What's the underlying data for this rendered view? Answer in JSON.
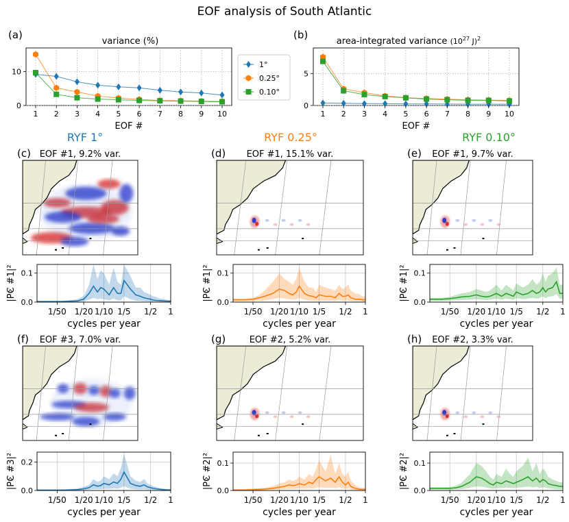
{
  "figure": {
    "title": "EOF analysis of South Atlantic",
    "column_titles": [
      {
        "text": "RYF 1°",
        "color": "#1f77b4"
      },
      {
        "text": "RYF 0.25°",
        "color": "#ff7f0e"
      },
      {
        "text": "RYF 0.10°",
        "color": "#2ca02c"
      }
    ]
  },
  "colors": {
    "c1": "#1f77b4",
    "c025": "#ff7f0e",
    "c010": "#2ca02c",
    "land": "#ecebd6",
    "pos": "#d62020",
    "neg": "#2030c8"
  },
  "chart_data": [
    {
      "id": "a",
      "type": "line",
      "panel_label": "(a)",
      "title": "variance (%)",
      "xlabel": "EOF #",
      "ylabel": "",
      "x": [
        1,
        2,
        3,
        4,
        5,
        6,
        7,
        8,
        9,
        10
      ],
      "ylim": [
        0,
        17
      ],
      "yticks": [
        0,
        10
      ],
      "series": [
        {
          "name": "1°",
          "marker": "diamond",
          "values": [
            9.2,
            8.6,
            7.0,
            6.0,
            5.5,
            5.2,
            4.5,
            4.0,
            3.7,
            3.1
          ]
        },
        {
          "name": "0.25°",
          "marker": "hexagon",
          "values": [
            15.1,
            5.2,
            4.0,
            2.8,
            2.2,
            1.8,
            1.5,
            1.4,
            1.3,
            1.2
          ]
        },
        {
          "name": "0.10°",
          "marker": "square",
          "values": [
            9.7,
            3.3,
            2.3,
            1.9,
            1.7,
            1.5,
            1.4,
            1.3,
            1.2,
            1.1
          ]
        }
      ],
      "legend": [
        "1°",
        "0.25°",
        "0.10°"
      ]
    },
    {
      "id": "b",
      "type": "line",
      "panel_label": "(b)",
      "title": "area-integrated variance",
      "title_units": "(10",
      "title_exp": "27",
      "title_units_end": " J)",
      "title_units_exp2": "2",
      "xlabel": "EOF #",
      "ylabel": "",
      "x": [
        1,
        2,
        3,
        4,
        5,
        6,
        7,
        8,
        9,
        10
      ],
      "ylim": [
        0,
        9
      ],
      "yticks": [
        0,
        5
      ],
      "series": [
        {
          "name": "1°",
          "marker": "diamond",
          "values": [
            0.4,
            0.35,
            0.3,
            0.3,
            0.25,
            0.25,
            0.22,
            0.2,
            0.2,
            0.2
          ]
        },
        {
          "name": "0.25°",
          "marker": "hexagon",
          "values": [
            7.6,
            2.6,
            2.0,
            1.5,
            1.2,
            1.1,
            1.0,
            0.9,
            0.85,
            0.8
          ]
        },
        {
          "name": "0.10°",
          "marker": "square",
          "values": [
            6.9,
            2.3,
            1.7,
            1.4,
            1.2,
            1.0,
            0.9,
            0.8,
            0.8,
            0.7
          ]
        }
      ]
    },
    {
      "id": "c-sp",
      "type": "area",
      "panel_label": "",
      "color": "#1f77b4",
      "ylabel": "|PC #1|²",
      "xlabel": "cycles per year",
      "xscale": "log",
      "xlim": [
        0.01,
        1
      ],
      "ylim": [
        0,
        0.13
      ],
      "yticks": [
        0.0,
        0.1
      ],
      "yticklabels": [
        "0.0",
        "0.1"
      ],
      "xticklabels": [
        "1/50",
        "1/20",
        "1/10",
        "1/5",
        "1/2",
        "1"
      ],
      "x": [
        0.01,
        0.015,
        0.02,
        0.025,
        0.03,
        0.04,
        0.05,
        0.06,
        0.07,
        0.08,
        0.09,
        0.1,
        0.12,
        0.14,
        0.16,
        0.18,
        0.2,
        0.25,
        0.3,
        0.35,
        0.4,
        0.45,
        0.5,
        0.55,
        0.6,
        0.7,
        0.8,
        0.9,
        1.0
      ],
      "y": [
        0.002,
        0.002,
        0.002,
        0.002,
        0.003,
        0.004,
        0.01,
        0.03,
        0.055,
        0.035,
        0.05,
        0.045,
        0.025,
        0.05,
        0.03,
        0.03,
        0.075,
        0.045,
        0.025,
        0.02,
        0.015,
        0.012,
        0.01,
        0.007,
        0.006,
        0.005,
        0.004,
        0.003,
        0.003
      ],
      "yhi": [
        0.004,
        0.004,
        0.004,
        0.005,
        0.006,
        0.01,
        0.02,
        0.06,
        0.13,
        0.08,
        0.11,
        0.1,
        0.06,
        0.12,
        0.07,
        0.06,
        0.13,
        0.09,
        0.05,
        0.05,
        0.035,
        0.03,
        0.025,
        0.02,
        0.018,
        0.012,
        0.01,
        0.008,
        0.007
      ],
      "ylo": [
        0.001,
        0.001,
        0.001,
        0.001,
        0.001,
        0.001,
        0.003,
        0.008,
        0.015,
        0.01,
        0.012,
        0.01,
        0.006,
        0.012,
        0.006,
        0.006,
        0.02,
        0.01,
        0.005,
        0.004,
        0.003,
        0.002,
        0.002,
        0.001,
        0.001,
        0.001,
        0.001,
        0.001,
        0.001
      ]
    },
    {
      "id": "d-sp",
      "type": "area",
      "panel_label": "",
      "color": "#ff7f0e",
      "ylabel": "|PC #1|²",
      "xlabel": "cycles per year",
      "xscale": "log",
      "xlim": [
        0.01,
        1
      ],
      "ylim": [
        0,
        0.13
      ],
      "yticks": [
        0.0,
        0.1
      ],
      "yticklabels": [
        "0.0",
        "0.1"
      ],
      "xticklabels": [
        "1/50",
        "1/20",
        "1/10",
        "1/5",
        "1/2",
        "1"
      ],
      "x": [
        0.01,
        0.015,
        0.02,
        0.025,
        0.03,
        0.04,
        0.05,
        0.06,
        0.07,
        0.08,
        0.09,
        0.1,
        0.12,
        0.14,
        0.16,
        0.18,
        0.2,
        0.25,
        0.3,
        0.35,
        0.4,
        0.45,
        0.5,
        0.55,
        0.6,
        0.7,
        0.8,
        0.9,
        1.0
      ],
      "y": [
        0.008,
        0.008,
        0.01,
        0.015,
        0.02,
        0.03,
        0.045,
        0.04,
        0.03,
        0.025,
        0.035,
        0.055,
        0.03,
        0.022,
        0.02,
        0.015,
        0.025,
        0.02,
        0.02,
        0.015,
        0.03,
        0.02,
        0.02,
        0.025,
        0.015,
        0.01,
        0.01,
        0.008,
        0.008
      ],
      "yhi": [
        0.012,
        0.012,
        0.015,
        0.025,
        0.04,
        0.07,
        0.1,
        0.08,
        0.07,
        0.06,
        0.08,
        0.12,
        0.07,
        0.05,
        0.05,
        0.035,
        0.06,
        0.05,
        0.045,
        0.04,
        0.06,
        0.045,
        0.05,
        0.06,
        0.04,
        0.03,
        0.028,
        0.02,
        0.02
      ],
      "ylo": [
        0.003,
        0.003,
        0.004,
        0.005,
        0.006,
        0.01,
        0.015,
        0.012,
        0.01,
        0.008,
        0.01,
        0.015,
        0.008,
        0.006,
        0.005,
        0.004,
        0.006,
        0.005,
        0.005,
        0.004,
        0.007,
        0.005,
        0.005,
        0.006,
        0.004,
        0.003,
        0.003,
        0.002,
        0.002
      ]
    },
    {
      "id": "e-sp",
      "type": "area",
      "panel_label": "",
      "color": "#2ca02c",
      "ylabel": "|PC #1|²",
      "xlabel": "cycles per year",
      "xscale": "log",
      "xlim": [
        0.01,
        1
      ],
      "ylim": [
        0,
        0.13
      ],
      "yticks": [
        0.0,
        0.1
      ],
      "yticklabels": [
        "0.0",
        "0.1"
      ],
      "xticklabels": [
        "1/50",
        "1/20",
        "1/10",
        "1/5",
        "1/2",
        "1"
      ],
      "x": [
        0.01,
        0.015,
        0.02,
        0.025,
        0.03,
        0.04,
        0.05,
        0.06,
        0.07,
        0.08,
        0.09,
        0.1,
        0.12,
        0.14,
        0.16,
        0.18,
        0.2,
        0.25,
        0.3,
        0.35,
        0.4,
        0.45,
        0.5,
        0.55,
        0.6,
        0.7,
        0.8,
        0.9,
        1.0
      ],
      "y": [
        0.01,
        0.01,
        0.012,
        0.015,
        0.018,
        0.02,
        0.025,
        0.02,
        0.018,
        0.02,
        0.025,
        0.03,
        0.02,
        0.03,
        0.025,
        0.02,
        0.035,
        0.025,
        0.03,
        0.04,
        0.03,
        0.035,
        0.05,
        0.035,
        0.045,
        0.05,
        0.07,
        0.03,
        0.03
      ],
      "yhi": [
        0.015,
        0.015,
        0.018,
        0.025,
        0.03,
        0.035,
        0.045,
        0.04,
        0.035,
        0.04,
        0.05,
        0.06,
        0.04,
        0.06,
        0.05,
        0.04,
        0.065,
        0.05,
        0.06,
        0.08,
        0.06,
        0.07,
        0.1,
        0.07,
        0.09,
        0.1,
        0.12,
        0.06,
        0.06
      ],
      "ylo": [
        0.004,
        0.004,
        0.005,
        0.006,
        0.007,
        0.008,
        0.01,
        0.008,
        0.007,
        0.008,
        0.01,
        0.012,
        0.008,
        0.012,
        0.01,
        0.008,
        0.014,
        0.01,
        0.012,
        0.015,
        0.012,
        0.014,
        0.02,
        0.014,
        0.018,
        0.02,
        0.028,
        0.012,
        0.012
      ]
    },
    {
      "id": "f-sp",
      "type": "area",
      "panel_label": "",
      "color": "#1f77b4",
      "ylabel": "|PC #3|²",
      "xlabel": "cycles per year",
      "xscale": "log",
      "xlim": [
        0.01,
        1
      ],
      "ylim": [
        0,
        0.27
      ],
      "yticks": [
        0.0,
        0.2
      ],
      "yticklabels": [
        "0.0",
        "0.2"
      ],
      "xticklabels": [
        "1/50",
        "1/20",
        "1/10",
        "1/5",
        "1/2",
        "1"
      ],
      "x": [
        0.01,
        0.015,
        0.02,
        0.025,
        0.03,
        0.04,
        0.05,
        0.06,
        0.07,
        0.08,
        0.09,
        0.1,
        0.12,
        0.14,
        0.16,
        0.18,
        0.2,
        0.25,
        0.3,
        0.35,
        0.4,
        0.45,
        0.5,
        0.55,
        0.6,
        0.7,
        0.8,
        0.9,
        1.0
      ],
      "y": [
        0.003,
        0.003,
        0.003,
        0.003,
        0.004,
        0.006,
        0.012,
        0.02,
        0.04,
        0.03,
        0.035,
        0.05,
        0.04,
        0.06,
        0.05,
        0.08,
        0.13,
        0.05,
        0.035,
        0.03,
        0.04,
        0.025,
        0.02,
        0.015,
        0.012,
        0.008,
        0.006,
        0.004,
        0.004
      ],
      "yhi": [
        0.006,
        0.006,
        0.006,
        0.007,
        0.009,
        0.014,
        0.025,
        0.04,
        0.08,
        0.06,
        0.07,
        0.1,
        0.08,
        0.12,
        0.1,
        0.16,
        0.26,
        0.1,
        0.07,
        0.06,
        0.08,
        0.05,
        0.04,
        0.03,
        0.025,
        0.016,
        0.012,
        0.009,
        0.008
      ],
      "ylo": [
        0.001,
        0.001,
        0.001,
        0.001,
        0.001,
        0.002,
        0.003,
        0.005,
        0.01,
        0.008,
        0.009,
        0.012,
        0.01,
        0.015,
        0.012,
        0.02,
        0.03,
        0.012,
        0.008,
        0.007,
        0.009,
        0.006,
        0.005,
        0.004,
        0.003,
        0.002,
        0.002,
        0.001,
        0.001
      ]
    },
    {
      "id": "g-sp",
      "type": "area",
      "panel_label": "",
      "color": "#ff7f0e",
      "ylabel": "|PC #2|²",
      "xlabel": "cycles per year",
      "xscale": "log",
      "xlim": [
        0.01,
        1
      ],
      "ylim": [
        0,
        0.14
      ],
      "yticks": [
        0.0,
        0.1
      ],
      "yticklabels": [
        "0.0",
        "0.1"
      ],
      "xticklabels": [
        "1/50",
        "1/20",
        "1/10",
        "1/5",
        "1/2",
        "1"
      ],
      "x": [
        0.01,
        0.015,
        0.02,
        0.025,
        0.03,
        0.04,
        0.05,
        0.06,
        0.07,
        0.08,
        0.09,
        0.1,
        0.12,
        0.14,
        0.16,
        0.18,
        0.2,
        0.25,
        0.3,
        0.35,
        0.4,
        0.45,
        0.5,
        0.55,
        0.6,
        0.7,
        0.8,
        0.9,
        1.0
      ],
      "y": [
        0.002,
        0.002,
        0.003,
        0.004,
        0.005,
        0.008,
        0.012,
        0.015,
        0.02,
        0.018,
        0.02,
        0.025,
        0.02,
        0.03,
        0.025,
        0.04,
        0.05,
        0.035,
        0.045,
        0.03,
        0.05,
        0.03,
        0.02,
        0.03,
        0.015,
        0.008,
        0.005,
        0.004,
        0.004
      ],
      "yhi": [
        0.004,
        0.004,
        0.006,
        0.008,
        0.01,
        0.016,
        0.025,
        0.03,
        0.04,
        0.035,
        0.04,
        0.05,
        0.04,
        0.06,
        0.05,
        0.08,
        0.11,
        0.07,
        0.13,
        0.06,
        0.1,
        0.06,
        0.05,
        0.07,
        0.035,
        0.02,
        0.012,
        0.009,
        0.009
      ],
      "ylo": [
        0.001,
        0.001,
        0.001,
        0.001,
        0.002,
        0.003,
        0.004,
        0.005,
        0.006,
        0.005,
        0.006,
        0.008,
        0.006,
        0.009,
        0.007,
        0.01,
        0.012,
        0.009,
        0.011,
        0.008,
        0.012,
        0.008,
        0.005,
        0.008,
        0.004,
        0.002,
        0.001,
        0.001,
        0.001
      ]
    },
    {
      "id": "h-sp",
      "type": "area",
      "panel_label": "",
      "color": "#2ca02c",
      "ylabel": "|PC #2|²",
      "xlabel": "cycles per year",
      "xscale": "log",
      "xlim": [
        0.01,
        1
      ],
      "ylim": [
        0,
        0.14
      ],
      "yticks": [
        0.0,
        0.1
      ],
      "yticklabels": [
        "0.0",
        "0.1"
      ],
      "xticklabels": [
        "1/50",
        "1/20",
        "1/10",
        "1/5",
        "1/2",
        "1"
      ],
      "x": [
        0.01,
        0.015,
        0.02,
        0.025,
        0.03,
        0.04,
        0.05,
        0.06,
        0.07,
        0.08,
        0.09,
        0.1,
        0.12,
        0.14,
        0.16,
        0.18,
        0.2,
        0.25,
        0.3,
        0.35,
        0.4,
        0.45,
        0.5,
        0.55,
        0.6,
        0.7,
        0.8,
        0.9,
        1.0
      ],
      "y": [
        0.008,
        0.008,
        0.008,
        0.01,
        0.015,
        0.03,
        0.05,
        0.045,
        0.035,
        0.025,
        0.02,
        0.03,
        0.025,
        0.035,
        0.03,
        0.025,
        0.03,
        0.04,
        0.05,
        0.035,
        0.045,
        0.03,
        0.04,
        0.035,
        0.025,
        0.02,
        0.018,
        0.015,
        0.015
      ],
      "yhi": [
        0.012,
        0.012,
        0.012,
        0.018,
        0.028,
        0.06,
        0.1,
        0.09,
        0.07,
        0.05,
        0.04,
        0.06,
        0.05,
        0.08,
        0.06,
        0.05,
        0.07,
        0.09,
        0.12,
        0.07,
        0.1,
        0.06,
        0.08,
        0.07,
        0.05,
        0.04,
        0.035,
        0.03,
        0.03
      ],
      "ylo": [
        0.003,
        0.003,
        0.003,
        0.004,
        0.005,
        0.01,
        0.015,
        0.014,
        0.011,
        0.008,
        0.006,
        0.009,
        0.008,
        0.011,
        0.009,
        0.008,
        0.01,
        0.012,
        0.015,
        0.011,
        0.014,
        0.009,
        0.012,
        0.011,
        0.008,
        0.006,
        0.005,
        0.004,
        0.004
      ]
    }
  ],
  "maps": [
    {
      "id": "c",
      "panel_label": "(c)",
      "title": "EOF #1, 9.2% var.",
      "pattern": "broad"
    },
    {
      "id": "d",
      "panel_label": "(d)",
      "title": "EOF #1, 15.1% var.",
      "pattern": "local"
    },
    {
      "id": "e",
      "panel_label": "(e)",
      "title": "EOF #1, 9.7% var.",
      "pattern": "local"
    },
    {
      "id": "f",
      "panel_label": "(f)",
      "title": "EOF #3, 7.0% var.",
      "pattern": "broad3"
    },
    {
      "id": "g",
      "panel_label": "(g)",
      "title": "EOF #2, 5.2% var.",
      "pattern": "local2"
    },
    {
      "id": "h",
      "panel_label": "(h)",
      "title": "EOF #2, 3.3% var.",
      "pattern": "local2"
    }
  ]
}
